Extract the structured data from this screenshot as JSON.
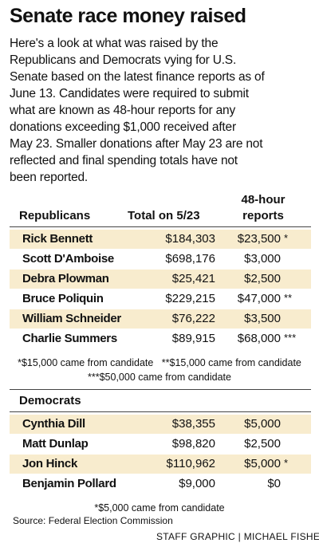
{
  "title": "Senate race money raised",
  "intro": [
    "Here's a look at what was raised by the",
    "Republicans and Democrats vying for U.S.",
    "Senate based on the latest finance reports as of",
    "June 13. Candidates were required to submit",
    "what are known as 48-hour reports for any",
    "donations exceeding $1,000 received after",
    "May 23. Smaller donations after May 23 are not",
    "reflected and final spending totals have not",
    "been reported."
  ],
  "columns": {
    "total": "Total on 5/23",
    "reports": [
      "48-hour",
      "reports"
    ]
  },
  "republicans": {
    "heading": "Republicans",
    "rows": [
      {
        "name": "Rick Bennett",
        "total": "$184,303",
        "reports": "$23,500",
        "note": "*"
      },
      {
        "name": "Scott D'Amboise",
        "total": "$698,176",
        "reports": "$3,000"
      },
      {
        "name": "Debra Plowman",
        "total": "$25,421",
        "reports": "$2,500"
      },
      {
        "name": "Bruce Poliquin",
        "total": "$229,215",
        "reports": "$47,000",
        "note": "**"
      },
      {
        "name": "William Schneider",
        "total": "$76,222",
        "reports": "$3,500"
      },
      {
        "name": "Charlie Summers",
        "total": "$89,915",
        "reports": "$68,000",
        "note": "***"
      }
    ],
    "footnotes": [
      "*$15,000 came from candidate   **$15,000 came from candidate",
      "***$50,000 came from candidate"
    ]
  },
  "democrats": {
    "heading": "Democrats",
    "rows": [
      {
        "name": "Cynthia Dill",
        "total": "$38,355",
        "reports": "$5,000"
      },
      {
        "name": "Matt Dunlap",
        "total": "$98,820",
        "reports": "$2,500"
      },
      {
        "name": "Jon Hinck",
        "total": "$110,962",
        "reports": "$5,000",
        "note": "*"
      },
      {
        "name": "Benjamin Pollard",
        "total": "$9,000",
        "reports": "$0"
      }
    ],
    "footnotes": [
      "*$5,000 came from candidate"
    ]
  },
  "source": "Source: Federal Election Commission",
  "credit": "STAFF GRAPHIC | MICHAEL FISHER"
}
